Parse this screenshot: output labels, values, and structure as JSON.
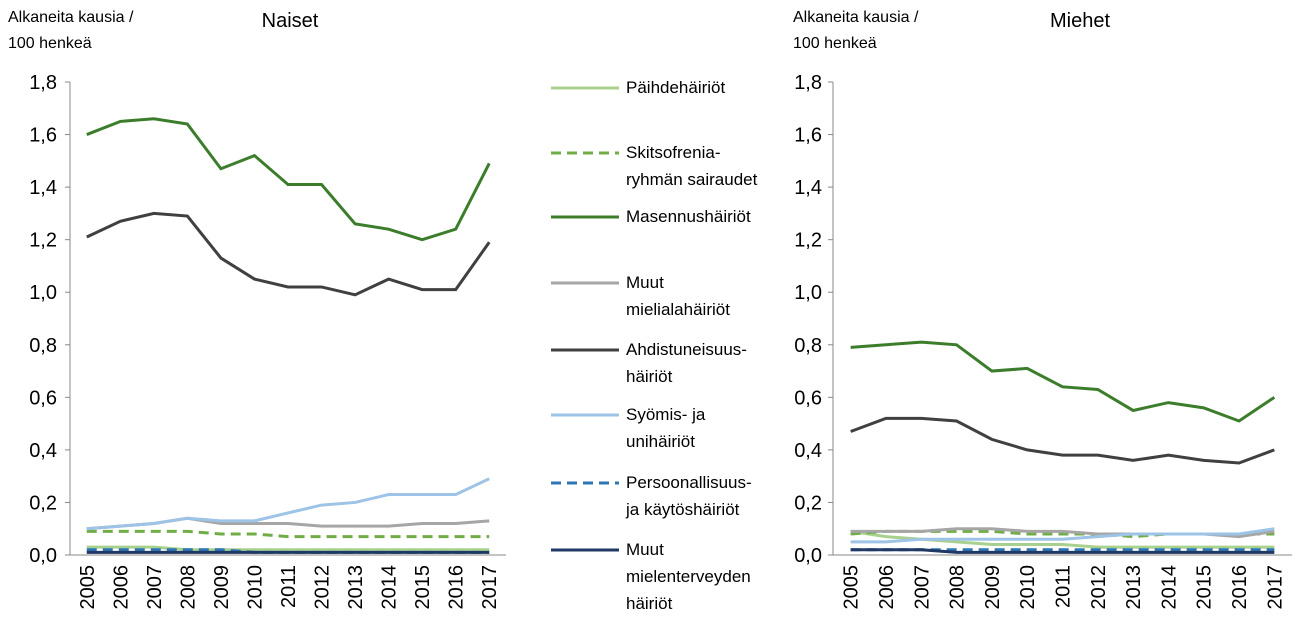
{
  "chart_data": [
    {
      "type": "line",
      "title": "Naiset",
      "y_label": "Alkaneita kausia /\n100 henkeä",
      "categories": [
        "2005",
        "2006",
        "2007",
        "2008",
        "2009",
        "2010",
        "2011",
        "2012",
        "2013",
        "2014",
        "2015",
        "2016",
        "2017"
      ],
      "ylim": [
        0,
        1.8
      ],
      "yticks": [
        {
          "value": 0,
          "label": "0,0"
        },
        {
          "value": 0.2,
          "label": "0,2"
        },
        {
          "value": 0.4,
          "label": "0,4"
        },
        {
          "value": 0.6,
          "label": "0,6"
        },
        {
          "value": 0.8,
          "label": "0,8"
        },
        {
          "value": 1.0,
          "label": "1,0"
        },
        {
          "value": 1.2,
          "label": "1,2"
        },
        {
          "value": 1.4,
          "label": "1,4"
        },
        {
          "value": 1.6,
          "label": "1,6"
        },
        {
          "value": 1.8,
          "label": "1,8"
        }
      ],
      "series": [
        {
          "name": "Päihdehäiriöt",
          "color": "#a9d18e",
          "dash": false,
          "values": [
            0.03,
            0.03,
            0.03,
            0.02,
            0.02,
            0.02,
            0.02,
            0.02,
            0.02,
            0.02,
            0.02,
            0.02,
            0.02
          ]
        },
        {
          "name": "Skitsofrenia-\nryhmän sairaudet",
          "color": "#70ad47",
          "dash": true,
          "values": [
            0.09,
            0.09,
            0.09,
            0.09,
            0.08,
            0.08,
            0.07,
            0.07,
            0.07,
            0.07,
            0.07,
            0.07,
            0.07
          ]
        },
        {
          "name": "Masennushäiriöt",
          "color": "#3c7d2c",
          "dash": false,
          "values": [
            1.6,
            1.65,
            1.66,
            1.64,
            1.47,
            1.52,
            1.41,
            1.41,
            1.26,
            1.24,
            1.2,
            1.24,
            1.49
          ]
        },
        {
          "name": "Muut\nmielialahäiriöt",
          "color": "#a6a6a6",
          "dash": false,
          "values": [
            0.1,
            0.11,
            0.12,
            0.14,
            0.12,
            0.12,
            0.12,
            0.11,
            0.11,
            0.11,
            0.12,
            0.12,
            0.13
          ]
        },
        {
          "name": "Ahdistuneisuus-\nhäiriöt",
          "color": "#404040",
          "dash": false,
          "values": [
            1.21,
            1.27,
            1.3,
            1.29,
            1.13,
            1.05,
            1.02,
            1.02,
            0.99,
            1.05,
            1.01,
            1.01,
            1.19
          ]
        },
        {
          "name": "Syömis- ja\nunihäiriöt",
          "color": "#9dc3e6",
          "dash": false,
          "values": [
            0.1,
            0.11,
            0.12,
            0.14,
            0.13,
            0.13,
            0.16,
            0.19,
            0.2,
            0.23,
            0.23,
            0.23,
            0.29
          ]
        },
        {
          "name": "Persoonallisuus-\nja käytöshäiriöt",
          "color": "#2e75b6",
          "dash": true,
          "values": [
            0.02,
            0.02,
            0.02,
            0.02,
            0.02,
            0.01,
            0.01,
            0.01,
            0.01,
            0.01,
            0.01,
            0.01,
            0.01
          ]
        },
        {
          "name": "Muut\nmielenterveyden\nhäiriöt",
          "color": "#1f3864",
          "dash": false,
          "values": [
            0.01,
            0.01,
            0.01,
            0.01,
            0.01,
            0.01,
            0.01,
            0.01,
            0.01,
            0.01,
            0.01,
            0.01,
            0.01
          ]
        }
      ]
    },
    {
      "type": "line",
      "title": "Miehet",
      "y_label": "Alkaneita kausia /\n100 henkeä",
      "categories": [
        "2005",
        "2006",
        "2007",
        "2008",
        "2009",
        "2010",
        "2011",
        "2012",
        "2013",
        "2014",
        "2015",
        "2016",
        "2017"
      ],
      "ylim": [
        0,
        1.8
      ],
      "yticks": [
        {
          "value": 0,
          "label": "0,0"
        },
        {
          "value": 0.2,
          "label": "0,2"
        },
        {
          "value": 0.4,
          "label": "0,4"
        },
        {
          "value": 0.6,
          "label": "0,6"
        },
        {
          "value": 0.8,
          "label": "0,8"
        },
        {
          "value": 1.0,
          "label": "1,0"
        },
        {
          "value": 1.2,
          "label": "1,2"
        },
        {
          "value": 1.4,
          "label": "1,4"
        },
        {
          "value": 1.6,
          "label": "1,6"
        },
        {
          "value": 1.8,
          "label": "1,8"
        }
      ],
      "series": [
        {
          "color": "#a9d18e",
          "dash": false,
          "values": [
            0.09,
            0.07,
            0.06,
            0.05,
            0.04,
            0.04,
            0.04,
            0.03,
            0.03,
            0.03,
            0.03,
            0.03,
            0.03
          ]
        },
        {
          "color": "#70ad47",
          "dash": true,
          "values": [
            0.08,
            0.09,
            0.09,
            0.09,
            0.09,
            0.08,
            0.08,
            0.08,
            0.07,
            0.08,
            0.08,
            0.08,
            0.08
          ]
        },
        {
          "color": "#3c7d2c",
          "dash": false,
          "values": [
            0.79,
            0.8,
            0.81,
            0.8,
            0.7,
            0.71,
            0.64,
            0.63,
            0.55,
            0.58,
            0.56,
            0.51,
            0.6
          ]
        },
        {
          "color": "#a6a6a6",
          "dash": false,
          "values": [
            0.09,
            0.09,
            0.09,
            0.1,
            0.1,
            0.09,
            0.09,
            0.08,
            0.08,
            0.08,
            0.08,
            0.07,
            0.09
          ]
        },
        {
          "color": "#404040",
          "dash": false,
          "values": [
            0.47,
            0.52,
            0.52,
            0.51,
            0.44,
            0.4,
            0.38,
            0.38,
            0.36,
            0.38,
            0.36,
            0.35,
            0.4
          ]
        },
        {
          "color": "#9dc3e6",
          "dash": false,
          "values": [
            0.05,
            0.05,
            0.06,
            0.06,
            0.06,
            0.06,
            0.06,
            0.07,
            0.08,
            0.08,
            0.08,
            0.08,
            0.1
          ]
        },
        {
          "color": "#2e75b6",
          "dash": true,
          "values": [
            0.02,
            0.02,
            0.02,
            0.02,
            0.02,
            0.02,
            0.02,
            0.02,
            0.02,
            0.02,
            0.02,
            0.02,
            0.02
          ]
        },
        {
          "color": "#1f3864",
          "dash": false,
          "values": [
            0.02,
            0.02,
            0.02,
            0.01,
            0.01,
            0.01,
            0.01,
            0.01,
            0.01,
            0.01,
            0.01,
            0.01,
            0.01
          ]
        }
      ]
    }
  ]
}
